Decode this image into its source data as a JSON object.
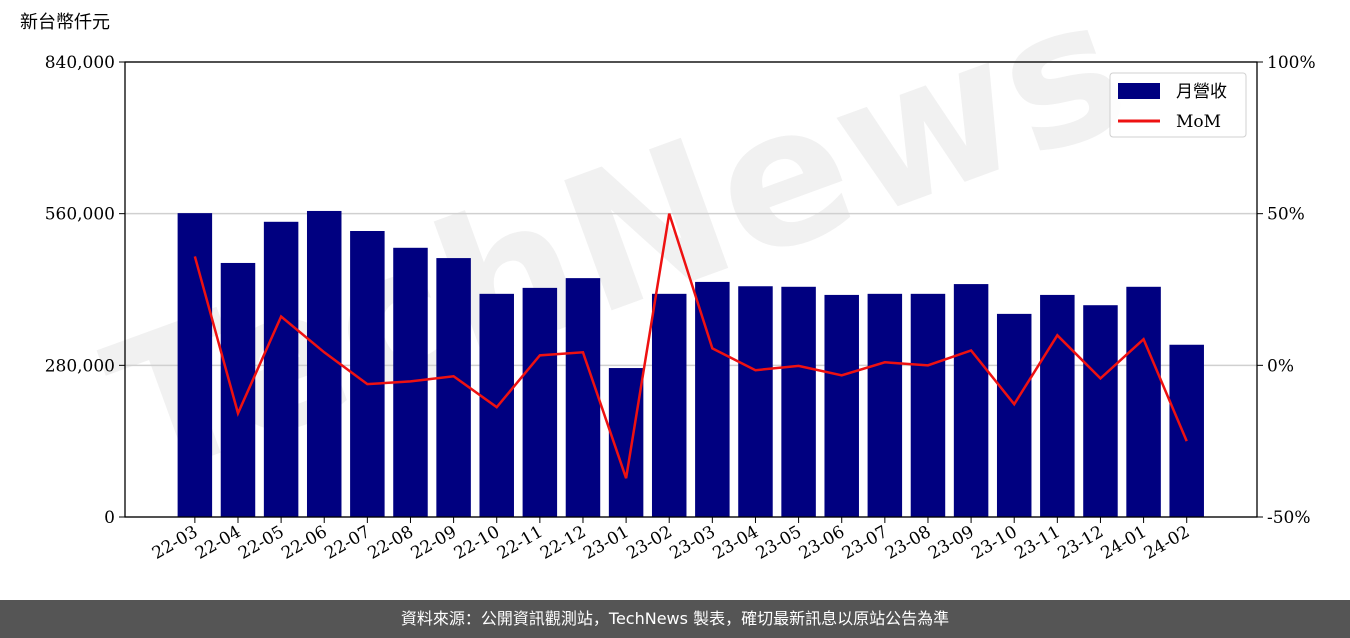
{
  "chart_data": {
    "type": "bar_line",
    "y_label": "新台幣仟元",
    "watermark": "TechNews",
    "categories": [
      "22-03",
      "22-04",
      "22-05",
      "22-06",
      "22-07",
      "22-08",
      "22-09",
      "22-10",
      "22-11",
      "22-12",
      "23-01",
      "23-02",
      "23-03",
      "23-04",
      "23-05",
      "23-06",
      "23-07",
      "23-08",
      "23-09",
      "23-10",
      "23-11",
      "23-12",
      "24-01",
      "24-02"
    ],
    "series": [
      {
        "name": "月營收",
        "type": "bar",
        "color": "#000080",
        "values": [
          561000,
          469000,
          545000,
          565000,
          528000,
          497000,
          478000,
          412000,
          423000,
          441000,
          275000,
          412000,
          434000,
          426000,
          425000,
          410000,
          412000,
          412000,
          430000,
          375000,
          410000,
          391000,
          425000,
          318000
        ]
      },
      {
        "name": "MoM",
        "type": "line",
        "axis": "y2",
        "color": "#ee1111",
        "values": [
          35.9,
          -15.8,
          16.1,
          4.3,
          -6.2,
          -5.3,
          -3.6,
          -13.8,
          3.3,
          4.3,
          -37.2,
          50,
          5.6,
          -1.6,
          -0.2,
          -3.3,
          1.0,
          0,
          4.9,
          -12.8,
          9.9,
          -4.3,
          8.6,
          -25
        ]
      }
    ],
    "ylim": [
      0,
      840000
    ],
    "yticks": [
      0,
      {
        "value": 280000,
        "label": "280,000"
      },
      {
        "value": 560000,
        "label": "560,000"
      },
      {
        "value": 840000,
        "label": "840,000"
      }
    ],
    "y2lim": [
      -50,
      100
    ],
    "y2ticks": [
      {
        "value": -50,
        "label": "-50%"
      },
      {
        "value": 0,
        "label": "0%"
      },
      {
        "value": 50,
        "label": "50%"
      },
      {
        "value": 100,
        "label": "100%"
      }
    ],
    "grid": true,
    "legend": "upper right"
  },
  "footer": "資料來源：公開資訊觀測站，TechNews 製表，確切最新訊息以原站公告為準"
}
